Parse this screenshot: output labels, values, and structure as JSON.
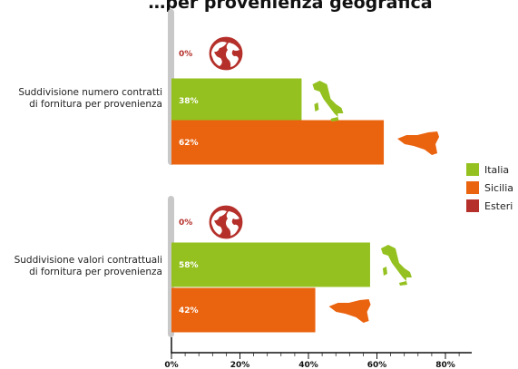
{
  "chart_data": {
    "type": "bar",
    "orientation": "horizontal",
    "title": "…per provenienza geografica",
    "xlim": [
      0,
      80
    ],
    "x_ticks": [
      "0%",
      "20%",
      "40%",
      "60%",
      "80%"
    ],
    "groups": [
      {
        "label_lines": [
          "Suddivisione numero contratti",
          "di fornitura per provenienza"
        ],
        "bars": [
          {
            "series": "Esteri",
            "value": 0,
            "label": "0%",
            "icon": "globe-icon"
          },
          {
            "series": "Italia",
            "value": 38,
            "label": "38%",
            "icon": "italy-map-icon"
          },
          {
            "series": "Sicilia",
            "value": 62,
            "label": "62%",
            "icon": "sicily-map-icon"
          }
        ]
      },
      {
        "label_lines": [
          "Suddivisione valori contrattuali",
          "di fornitura per provenienza"
        ],
        "bars": [
          {
            "series": "Esteri",
            "value": 0,
            "label": "0%",
            "icon": "globe-icon"
          },
          {
            "series": "Italia",
            "value": 58,
            "label": "58%",
            "icon": "italy-map-icon"
          },
          {
            "series": "Sicilia",
            "value": 42,
            "label": "42%",
            "icon": "sicily-map-icon"
          }
        ]
      }
    ],
    "legend": {
      "position": "right",
      "items": [
        {
          "name": "Italia",
          "color": "#94c11f"
        },
        {
          "name": "Sicilia",
          "color": "#ea630f"
        },
        {
          "name": "Esteri",
          "color": "#b5302a"
        }
      ]
    },
    "colors": {
      "Italia": "#94c11f",
      "Sicilia": "#ea630f",
      "Esteri": "#b5302a",
      "globe": "#b5302a",
      "axis": "#c8c8c8"
    }
  }
}
